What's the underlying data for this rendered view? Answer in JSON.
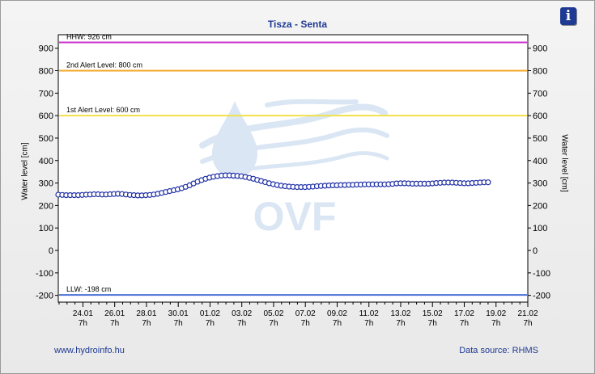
{
  "header": {
    "info_icon": "info-icon"
  },
  "footer": {
    "link": "www.hydroinfo.hu",
    "source": "Data source: RHMS"
  },
  "chart_data": {
    "type": "line",
    "title": "Tisza - Senta",
    "ylabel": "Water level [cm]",
    "ylim": [
      -230,
      960
    ],
    "yticks": [
      900,
      800,
      700,
      600,
      500,
      400,
      300,
      200,
      100,
      0,
      -100,
      -200
    ],
    "xticks": [
      {
        "label": "24.01",
        "sub": "7h"
      },
      {
        "label": "26.01",
        "sub": "7h"
      },
      {
        "label": "28.01",
        "sub": "7h"
      },
      {
        "label": "30.01",
        "sub": "7h"
      },
      {
        "label": "01.02",
        "sub": "7h"
      },
      {
        "label": "03.02",
        "sub": "7h"
      },
      {
        "label": "05.02",
        "sub": "7h"
      },
      {
        "label": "07.02",
        "sub": "7h"
      },
      {
        "label": "09.02",
        "sub": "7h"
      },
      {
        "label": "11.02",
        "sub": "7h"
      },
      {
        "label": "13.02",
        "sub": "7h"
      },
      {
        "label": "15.02",
        "sub": "7h"
      },
      {
        "label": "17.02",
        "sub": "7h"
      },
      {
        "label": "19.02",
        "sub": "7h"
      },
      {
        "label": "21.02",
        "sub": "7h"
      }
    ],
    "x_start_day": -1.55,
    "reference_lines": [
      {
        "label": "HHW: 926 cm",
        "value": 926,
        "color": "#cc33cc"
      },
      {
        "label": "2nd Alert Level: 800 cm",
        "value": 800,
        "color": "#f5a623"
      },
      {
        "label": "1st Alert Level: 600 cm",
        "value": 600,
        "color": "#f2e04b"
      },
      {
        "label": "LLW: -198 cm",
        "value": -198,
        "color": "#4a6fd6"
      }
    ],
    "series": [
      {
        "line_color": "#1f2fa6",
        "marker": "circle",
        "values": [
          248,
          247,
          246,
          246,
          246,
          246,
          247,
          248,
          249,
          250,
          250,
          249,
          249,
          250,
          251,
          252,
          251,
          249,
          247,
          246,
          245,
          245,
          246,
          247,
          249,
          252,
          256,
          260,
          264,
          268,
          272,
          277,
          283,
          290,
          298,
          306,
          313,
          319,
          324,
          328,
          331,
          333,
          334,
          334,
          333,
          332,
          330,
          327,
          323,
          319,
          314,
          309,
          304,
          299,
          295,
          291,
          288,
          286,
          284,
          283,
          282,
          282,
          282,
          283,
          284,
          286,
          287,
          288,
          289,
          290,
          290,
          291,
          291,
          292,
          292,
          293,
          293,
          294,
          294,
          294,
          294,
          294,
          294,
          295,
          296,
          298,
          299,
          299,
          298,
          297,
          297,
          297,
          297,
          297,
          298,
          300,
          301,
          302,
          302,
          302,
          301,
          300,
          299,
          299,
          300,
          301,
          302,
          303,
          303
        ]
      }
    ]
  }
}
